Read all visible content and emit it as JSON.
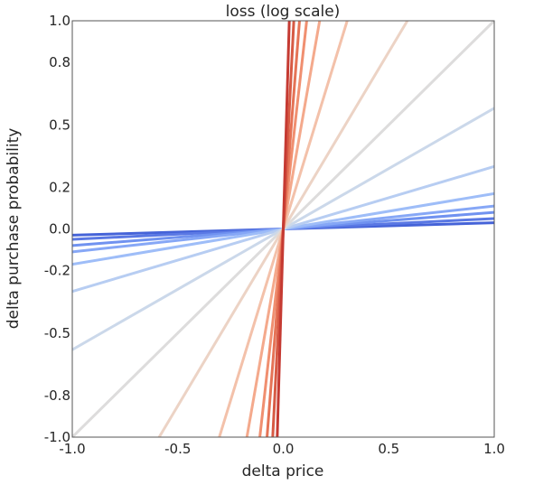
{
  "chart_data": {
    "type": "line",
    "title": "loss (log scale)",
    "xlabel": "delta price",
    "ylabel": "delta purchase probability",
    "xlim": [
      -1.0,
      1.0
    ],
    "ylim": [
      -1.0,
      1.0
    ],
    "x_ticks": [
      -1.0,
      -0.5,
      0.0,
      0.5,
      1.0
    ],
    "x_tick_labels": [
      "-1.0",
      "-0.5",
      "0.0",
      "0.5",
      "1.0"
    ],
    "y_ticks": [
      1.0,
      0.8,
      0.5,
      0.2,
      0.0,
      -0.2,
      -0.5,
      -0.8,
      -1.0
    ],
    "y_tick_labels": [
      "1.0",
      "0.8",
      "0.5",
      "0.2",
      "0.0",
      "-0.2",
      "-0.5",
      "-0.8",
      "-1.0"
    ],
    "grid": false,
    "colormap": "coolwarm",
    "series": [
      {
        "slope": 0.03,
        "color": "#4563d8"
      },
      {
        "slope": 0.05,
        "color": "#5a78e4"
      },
      {
        "slope": 0.08,
        "color": "#7092f0"
      },
      {
        "slope": 0.11,
        "color": "#86a7f6"
      },
      {
        "slope": 0.17,
        "color": "#9ebdf8"
      },
      {
        "slope": 0.3,
        "color": "#b7cdf2"
      },
      {
        "slope": 0.58,
        "color": "#cbd8ea"
      },
      {
        "slope": 1.0,
        "color": "#dddcdc"
      },
      {
        "slope": 1.7,
        "color": "#ecd3c5"
      },
      {
        "slope": 3.3,
        "color": "#f3c1aa"
      },
      {
        "slope": 5.8,
        "color": "#f4a98c"
      },
      {
        "slope": 9.0,
        "color": "#f08f70"
      },
      {
        "slope": 13.0,
        "color": "#e57356"
      },
      {
        "slope": 20.0,
        "color": "#d75a44"
      },
      {
        "slope": 35.0,
        "color": "#c53a32"
      }
    ]
  }
}
